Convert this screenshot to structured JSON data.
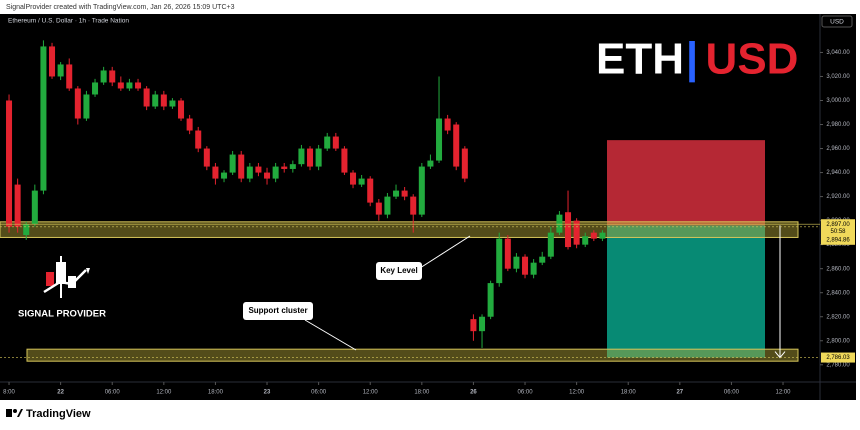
{
  "header": {
    "credit": "SignalProvider created with TradingView.com, Jan 26, 2026 15:09 UTC+3",
    "logo": "TradingView"
  },
  "chart_data": {
    "type": "candlestick",
    "title": "Ethereum / U.S. Dollar · 1h · Trade Nation",
    "currency": "USD",
    "badge": {
      "base": "ETH",
      "separator": "|",
      "quote": "USD"
    },
    "brand": "SIGNAL PROVIDER",
    "annotations": {
      "key_level": "Key Level",
      "support": "Support cluster"
    },
    "up_color": "#22ab3e",
    "down_color": "#e4232f",
    "x": [
      0,
      1,
      2,
      3,
      4,
      5,
      6,
      7,
      8,
      9,
      10,
      11,
      12,
      13,
      14,
      15,
      16,
      17,
      18,
      19,
      20,
      21,
      22,
      23,
      24,
      25,
      26,
      27,
      28,
      29,
      30,
      31,
      32,
      33,
      34,
      35,
      36,
      37,
      38,
      39,
      40,
      41,
      42,
      43,
      44,
      45,
      46,
      47,
      48,
      49,
      50,
      51,
      52,
      53,
      54,
      55,
      56,
      57,
      58,
      59,
      60,
      61,
      62,
      63,
      64,
      65,
      66,
      67,
      68,
      69
    ],
    "open": [
      3000,
      2930,
      2888,
      2897,
      2925,
      3045,
      3020,
      3030,
      3010,
      2985,
      3005,
      3015,
      3025,
      3015,
      3010,
      3015,
      3010,
      2995,
      3005,
      2995,
      3000,
      2985,
      2975,
      2960,
      2945,
      2935,
      2940,
      2955,
      2935,
      2945,
      2940,
      2935,
      2945,
      2943,
      2947,
      2960,
      2945,
      2960,
      2970,
      2960,
      2940,
      2930,
      2935,
      2915,
      2905,
      2920,
      2925,
      2920,
      2905,
      2945,
      2950,
      2985,
      2980,
      2960,
      2818,
      2808,
      2820,
      2848,
      2885,
      2860,
      2870,
      2855,
      2865,
      2870,
      2890,
      2907,
      2900,
      2880,
      2890,
      2885
    ],
    "high": [
      3005,
      2935,
      2899,
      2930,
      3050,
      3048,
      3032,
      3035,
      3012,
      3008,
      3018,
      3028,
      3028,
      3020,
      3018,
      3018,
      3012,
      3008,
      3008,
      3002,
      3002,
      2988,
      2978,
      2962,
      2948,
      2942,
      2958,
      2958,
      2948,
      2948,
      2944,
      2948,
      2948,
      2950,
      2963,
      2962,
      2963,
      2973,
      2973,
      2962,
      2942,
      2938,
      2937,
      2918,
      2923,
      2930,
      2928,
      2922,
      2948,
      2955,
      3020,
      2988,
      2982,
      2962,
      2822,
      2822,
      2850,
      2890,
      2888,
      2873,
      2872,
      2868,
      2874,
      2895,
      2908,
      2925,
      2902,
      2890,
      2892,
      2892
    ],
    "low": [
      2890,
      2890,
      2884,
      2895,
      2922,
      3018,
      3017,
      3008,
      2980,
      2983,
      3003,
      3013,
      3012,
      3008,
      3008,
      3008,
      2992,
      2993,
      2992,
      2993,
      2983,
      2972,
      2957,
      2942,
      2930,
      2932,
      2938,
      2932,
      2932,
      2937,
      2930,
      2932,
      2940,
      2940,
      2945,
      2942,
      2942,
      2958,
      2958,
      2938,
      2927,
      2928,
      2912,
      2900,
      2902,
      2918,
      2917,
      2890,
      2903,
      2943,
      2948,
      2972,
      2942,
      2932,
      2800,
      2794,
      2818,
      2845,
      2858,
      2857,
      2852,
      2852,
      2863,
      2868,
      2888,
      2876,
      2877,
      2878,
      2883,
      2883
    ],
    "close": [
      2895,
      2895,
      2897,
      2925,
      3045,
      3020,
      3030,
      3010,
      2985,
      3005,
      3015,
      3025,
      3015,
      3010,
      3015,
      3010,
      2995,
      3005,
      2995,
      3000,
      2985,
      2975,
      2960,
      2945,
      2935,
      2940,
      2955,
      2935,
      2945,
      2940,
      2935,
      2945,
      2943,
      2947,
      2960,
      2945,
      2960,
      2970,
      2960,
      2940,
      2930,
      2935,
      2915,
      2905,
      2920,
      2925,
      2920,
      2905,
      2945,
      2950,
      2985,
      2975,
      2945,
      2935,
      2808,
      2820,
      2848,
      2885,
      2860,
      2870,
      2855,
      2865,
      2870,
      2890,
      2905,
      2878,
      2880,
      2887,
      2885,
      2890
    ],
    "zones": [
      {
        "low": 2886,
        "high": 2899
      },
      {
        "low": 2783,
        "high": 2793
      }
    ],
    "position": {
      "entry": 2896,
      "stop": 2967,
      "target": 2786
    },
    "price_labels": [
      {
        "value": 2897,
        "label": "2,897.00"
      },
      {
        "value": 2894.86,
        "label": "2,894.86"
      },
      {
        "value": 2786.03,
        "label": "2,786.03"
      }
    ],
    "countdown": "50:58",
    "ylim": [
      2774,
      3072
    ],
    "yticks": [
      {
        "value": 2780,
        "label": "2,780.00"
      },
      {
        "value": 2800,
        "label": "2,800.00"
      },
      {
        "value": 2820,
        "label": "2,820.00"
      },
      {
        "value": 2840,
        "label": "2,840.00"
      },
      {
        "value": 2860,
        "label": "2,860.00"
      },
      {
        "value": 2880,
        "label": "2,880.00"
      },
      {
        "value": 2900,
        "label": "2,900.00"
      },
      {
        "value": 2920,
        "label": "2,920.00"
      },
      {
        "value": 2940,
        "label": "2,940.00"
      },
      {
        "value": 2960,
        "label": "2,960.00"
      },
      {
        "value": 2980,
        "label": "2,980.00"
      },
      {
        "value": 3000,
        "label": "3,000.00"
      },
      {
        "value": 3020,
        "label": "3,020.00"
      },
      {
        "value": 3040,
        "label": "3,040.00"
      }
    ],
    "xlim": [
      -1.05,
      94.3
    ],
    "xticks": [
      {
        "value": 0,
        "label": "8:00"
      },
      {
        "value": 6,
        "label": "22"
      },
      {
        "value": 12,
        "label": "06:00"
      },
      {
        "value": 18,
        "label": "12:00"
      },
      {
        "value": 24,
        "label": "18:00"
      },
      {
        "value": 30,
        "label": "23"
      },
      {
        "value": 36,
        "label": "06:00"
      },
      {
        "value": 42,
        "label": "12:00"
      },
      {
        "value": 48,
        "label": "18:00"
      },
      {
        "value": 54,
        "label": "26"
      },
      {
        "value": 60,
        "label": "06:00"
      },
      {
        "value": 66,
        "label": "12:00"
      },
      {
        "value": 72,
        "label": "18:00"
      },
      {
        "value": 78,
        "label": "27"
      },
      {
        "value": 84,
        "label": "06:00"
      },
      {
        "value": 90,
        "label": "12:00"
      }
    ]
  }
}
